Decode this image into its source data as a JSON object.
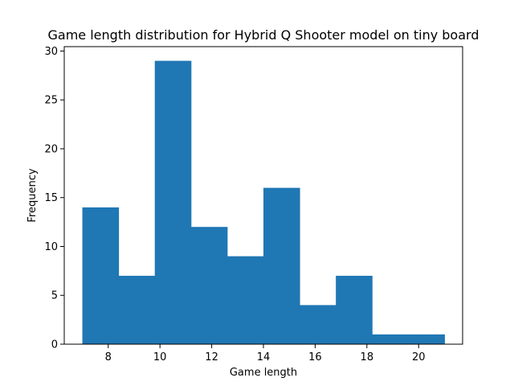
{
  "chart_data": {
    "type": "bar",
    "title": "Game length distribution for Hybrid Q Shooter model on tiny board",
    "xlabel": "Game length",
    "ylabel": "Frequency",
    "bin_edges": [
      7.0,
      8.4,
      9.8,
      11.2,
      12.6,
      14.0,
      15.4,
      16.8,
      18.2,
      19.6,
      21.0
    ],
    "values": [
      14,
      7,
      29,
      12,
      9,
      16,
      4,
      7,
      1,
      1
    ],
    "xlim": [
      6.3,
      21.7
    ],
    "ylim": [
      0,
      30.45
    ],
    "xticks": [
      8,
      10,
      12,
      14,
      16,
      18,
      20
    ],
    "yticks": [
      0,
      5,
      10,
      15,
      20,
      25,
      30
    ],
    "grid": false,
    "legend": "none",
    "bar_color": "#1f77b4"
  }
}
